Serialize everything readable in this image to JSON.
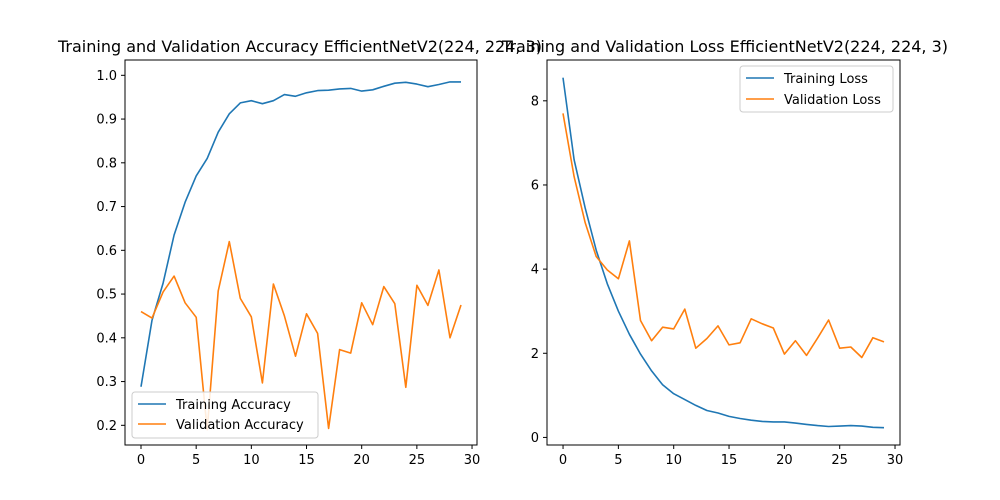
{
  "chart_data": [
    {
      "type": "line",
      "title": "Training and Validation Accuracy EfficientNetV2(224, 224, 3)",
      "xlabel": "",
      "ylabel": "",
      "xlim": [
        -1.45,
        30.45
      ],
      "ylim": [
        0.155,
        1.035
      ],
      "xticks": [
        0,
        5,
        10,
        15,
        20,
        25,
        30
      ],
      "yticks": [
        0.2,
        0.3,
        0.4,
        0.5,
        0.6,
        0.7,
        0.8,
        0.9,
        1.0
      ],
      "ytick_labels": [
        "0.2",
        "0.3",
        "0.4",
        "0.5",
        "0.6",
        "0.7",
        "0.8",
        "0.9",
        "1.0"
      ],
      "grid": false,
      "legend_position": "lower-left",
      "x": [
        0,
        1,
        2,
        3,
        4,
        5,
        6,
        7,
        8,
        9,
        10,
        11,
        12,
        13,
        14,
        15,
        16,
        17,
        18,
        19,
        20,
        21,
        22,
        23,
        24,
        25,
        26,
        27,
        28,
        29
      ],
      "series": [
        {
          "name": "Training Accuracy",
          "color": "#1f77b4",
          "values": [
            0.288,
            0.44,
            0.525,
            0.635,
            0.71,
            0.77,
            0.81,
            0.87,
            0.912,
            0.937,
            0.942,
            0.935,
            0.942,
            0.956,
            0.952,
            0.96,
            0.965,
            0.966,
            0.969,
            0.97,
            0.964,
            0.967,
            0.975,
            0.982,
            0.984,
            0.98,
            0.974,
            0.979,
            0.985,
            0.985
          ]
        },
        {
          "name": "Validation Accuracy",
          "color": "#ff7f0e",
          "values": [
            0.46,
            0.445,
            0.505,
            0.541,
            0.48,
            0.447,
            0.19,
            0.507,
            0.62,
            0.49,
            0.448,
            0.297,
            0.523,
            0.45,
            0.358,
            0.455,
            0.41,
            0.193,
            0.373,
            0.365,
            0.48,
            0.43,
            0.517,
            0.478,
            0.287,
            0.52,
            0.474,
            0.555,
            0.4,
            0.475
          ]
        }
      ]
    },
    {
      "type": "line",
      "title": "Training and Validation Loss EfficientNetV2(224, 224, 3)",
      "xlabel": "",
      "ylabel": "",
      "xlim": [
        -1.45,
        30.45
      ],
      "ylim": [
        -0.18,
        8.97
      ],
      "xticks": [
        0,
        5,
        10,
        15,
        20,
        25,
        30
      ],
      "yticks": [
        0,
        2,
        4,
        6,
        8
      ],
      "ytick_labels": [
        "0",
        "2",
        "4",
        "6",
        "8"
      ],
      "grid": false,
      "legend_position": "upper-right",
      "x": [
        0,
        1,
        2,
        3,
        4,
        5,
        6,
        7,
        8,
        9,
        10,
        11,
        12,
        13,
        14,
        15,
        16,
        17,
        18,
        19,
        20,
        21,
        22,
        23,
        24,
        25,
        26,
        27,
        28,
        29
      ],
      "series": [
        {
          "name": "Training Loss",
          "color": "#1f77b4",
          "values": [
            8.55,
            6.6,
            5.45,
            4.45,
            3.65,
            3.0,
            2.45,
            1.98,
            1.58,
            1.25,
            1.04,
            0.9,
            0.76,
            0.64,
            0.58,
            0.5,
            0.45,
            0.41,
            0.38,
            0.37,
            0.37,
            0.34,
            0.31,
            0.28,
            0.26,
            0.27,
            0.28,
            0.27,
            0.24,
            0.23
          ]
        },
        {
          "name": "Validation Loss",
          "color": "#ff7f0e",
          "values": [
            7.7,
            6.2,
            5.1,
            4.3,
            3.98,
            3.77,
            4.67,
            2.78,
            2.3,
            2.62,
            2.58,
            3.05,
            2.12,
            2.35,
            2.65,
            2.2,
            2.25,
            2.82,
            2.7,
            2.6,
            1.98,
            2.3,
            1.95,
            2.36,
            2.79,
            2.12,
            2.15,
            1.9,
            2.37,
            2.27
          ]
        }
      ]
    }
  ]
}
